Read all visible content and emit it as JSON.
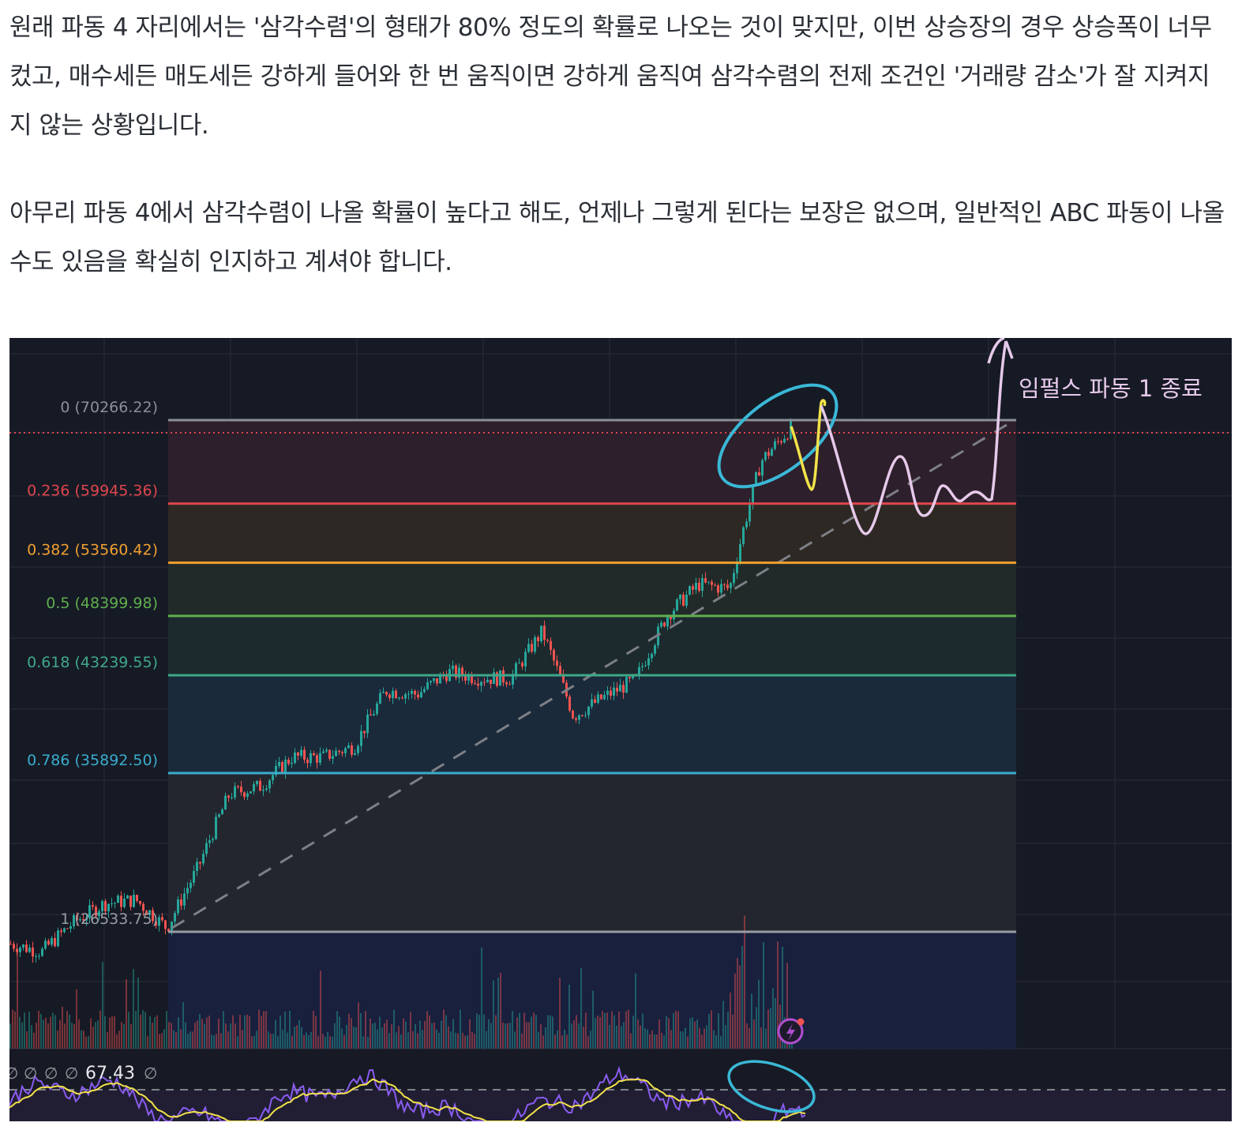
{
  "article": {
    "paragraphs": [
      " 원래 파동 4 자리에서는 '삼각수렴'의 형태가 80% 정도의 확률로 나오는 것이 맞지만, 이번 상승장의 경우 상승폭이 너무 컸고, 매수세든 매도세든 강하게 들어와 한 번 움직이면 강하게 움직여 삼각수렴의 전제 조건인 '거래량 감소'가 잘 지켜지지 않는 상황입니다.",
      " 아무리 파동 4에서 삼각수렴이 나올 확률이 높다고 해도, 언제나 그렇게 된다는 보장은 없으며, 일반적인 ABC 파동이 나올 수도 있음을 확실히 인지하고 계셔야 합니다."
    ]
  },
  "chart_data": {
    "type": "line",
    "y_scale": "log",
    "ylim": [
      24000,
      80000
    ],
    "grid": true,
    "background": "#161a25",
    "fib_levels": [
      {
        "ratio": "0",
        "price": 70266.22,
        "label": "0 (70266.22)",
        "color": "#8c8f98",
        "fill": "#2d1f2b"
      },
      {
        "ratio": "0.236",
        "price": 59945.36,
        "label": "0.236 (59945.36)",
        "color": "#e0464d",
        "fill": "#2e2824"
      },
      {
        "ratio": "0.382",
        "price": 53560.42,
        "label": "0.382 (53560.42)",
        "color": "#f0a030",
        "fill": "#212a28"
      },
      {
        "ratio": "0.5",
        "price": 48399.98,
        "label": "0.5 (48399.98)",
        "color": "#5fae4e",
        "fill": "#1c2a2e"
      },
      {
        "ratio": "0.618",
        "price": 43239.55,
        "label": "0.618 (43239.55)",
        "color": "#3fa88a",
        "fill": "#1a2a3a"
      },
      {
        "ratio": "0.786",
        "price": 35892.5,
        "label": "0.786 (35892.50)",
        "color": "#3aaccc",
        "fill": "#23262f"
      },
      {
        "ratio": "1",
        "price": 26533.75,
        "label": "1 (26533.75)",
        "color": "#9a9ca4",
        "fill": "#18203d"
      }
    ],
    "price_series": [
      25930,
      25550,
      27000,
      28000,
      28200,
      26720,
      30000,
      34500,
      35000,
      37000,
      37000,
      37800,
      42000,
      41700,
      43500,
      43000,
      43000,
      47000,
      40000,
      41500,
      42900,
      48500,
      51400,
      51000,
      65000,
      69430
    ],
    "current_price_line_color": "#e0464d",
    "rsi": {
      "value_label": "67.43",
      "empty_labels": [
        "∅",
        "∅",
        "∅",
        "∅"
      ],
      "trail_label": "∅",
      "rsi_color": "#8a5cf0",
      "ma_color": "#f2e24a"
    },
    "annotations": {
      "text": "임펄스 파동 1 종료",
      "circle_color": "#3ab8d6",
      "path_color": "#e6c9ea",
      "yellow_path_color": "#f2e24a"
    },
    "up_color": "#26a69a",
    "down_color": "#ef5350"
  }
}
